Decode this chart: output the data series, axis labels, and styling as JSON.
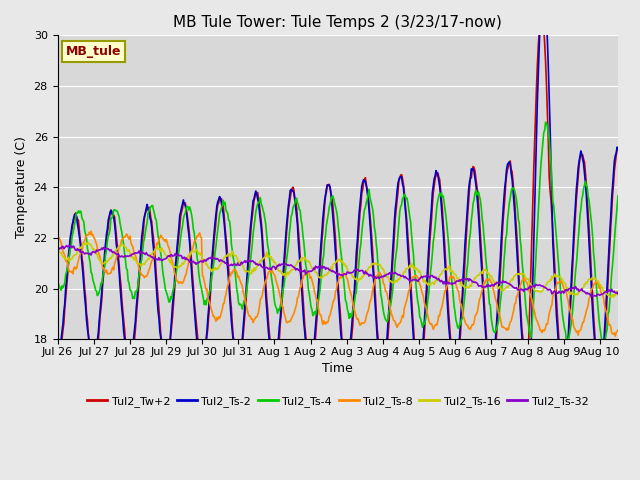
{
  "title": "MB Tule Tower: Tule Temps 2 (3/23/17-now)",
  "xlabel": "Time",
  "ylabel": "Temperature (C)",
  "ylim": [
    18,
    30
  ],
  "yticks": [
    18,
    20,
    22,
    24,
    26,
    28,
    30
  ],
  "background_color": "#e8e8e8",
  "plot_bg_color": "#d8d8d8",
  "annotation_text": "MB_tule",
  "annotation_color": "#8b0000",
  "annotation_bg": "#ffffcc",
  "annotation_border": "#999900",
  "series_colors": {
    "Tul2_Tw+2": "#cc0000",
    "Tul2_Ts-2": "#0000cc",
    "Tul2_Ts-4": "#00cc00",
    "Tul2_Ts-8": "#ff8800",
    "Tul2_Ts-16": "#cccc00",
    "Tul2_Ts-32": "#8800cc"
  },
  "lw": 1.2,
  "n_days": 15.5,
  "n_points": 620,
  "title_fontsize": 11,
  "tick_label_fontsize": 8,
  "axis_label_fontsize": 9,
  "xtick_positions": [
    0,
    1,
    2,
    3,
    4,
    5,
    6,
    7,
    8,
    9,
    10,
    11,
    12,
    13,
    14,
    15
  ],
  "xtick_labels": [
    "Jul 26",
    "Jul 27",
    "Jul 28",
    "Jul 29",
    "Jul 30",
    "Jul 31",
    "Aug 1",
    "Aug 2",
    "Aug 3",
    "Aug 4",
    "Aug 5",
    "Aug 6",
    "Aug 7",
    "Aug 8",
    "Aug 9",
    "Aug 10"
  ]
}
